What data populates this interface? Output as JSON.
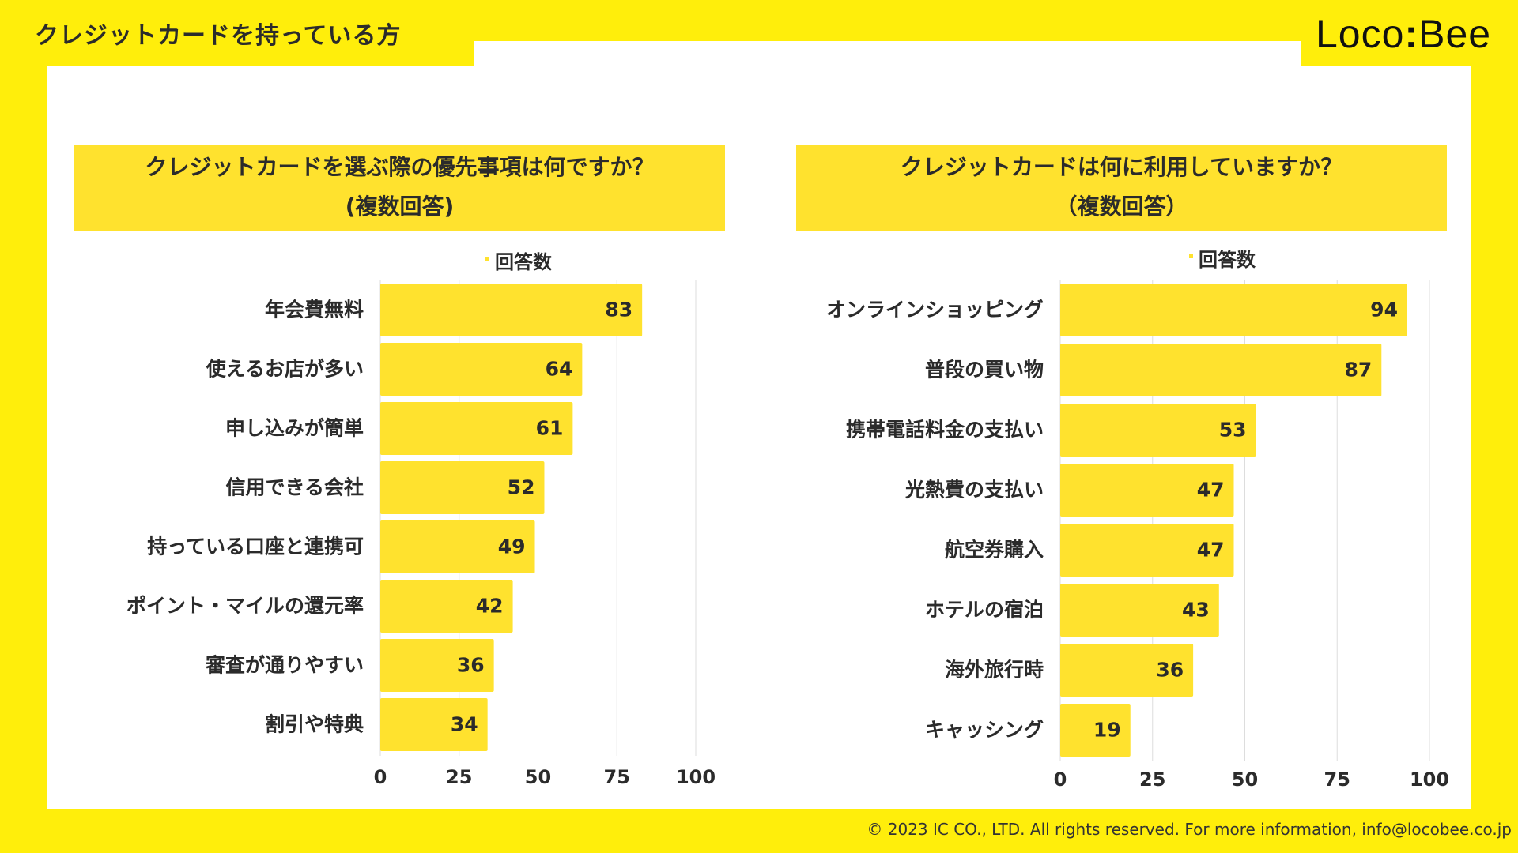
{
  "header": {
    "page_title": "クレジットカードを持っている方",
    "logo_text_left": "Loco",
    "logo_colon": ":",
    "logo_text_right": "Bee"
  },
  "footer": {
    "copyright": "© 2023 IC CO., LTD. All rights reserved. For more information, info@locobee.co.jp"
  },
  "colors": {
    "background": "#FFEE0B",
    "bar": "#FFE22E",
    "question_box": "#FFE22E",
    "grid": "#dddddd"
  },
  "chart_data": [
    {
      "type": "bar",
      "orientation": "horizontal",
      "title_line1": "クレジットカードを選ぶ際の優先事項は何ですか？",
      "title_line2": "(複数回答)",
      "legend": "回答数",
      "categories": [
        "年会費無料",
        "使えるお店が多い",
        "申し込みが簡単",
        "信用できる会社",
        "持っている口座と連携可",
        "ポイント・マイルの還元率",
        "審査が通りやすい",
        "割引や特典"
      ],
      "values": [
        83,
        64,
        61,
        52,
        49,
        42,
        36,
        34
      ],
      "xlim": [
        0,
        100
      ],
      "xticks": [
        "0",
        "25",
        "50",
        "75",
        "100"
      ],
      "grid": true
    },
    {
      "type": "bar",
      "orientation": "horizontal",
      "title_line1": "クレジットカードは何に利用していますか？",
      "title_line2": "（複数回答）",
      "legend": "回答数",
      "categories": [
        "オンラインショッピング",
        "普段の買い物",
        "携帯電話料金の支払い",
        "光熱費の支払い",
        "航空券購入",
        "ホテルの宿泊",
        "海外旅行時",
        "キャッシング"
      ],
      "values": [
        94,
        87,
        53,
        47,
        47,
        43,
        36,
        19
      ],
      "xlim": [
        0,
        100
      ],
      "xticks": [
        "0",
        "25",
        "50",
        "75",
        "100"
      ],
      "grid": true
    }
  ]
}
